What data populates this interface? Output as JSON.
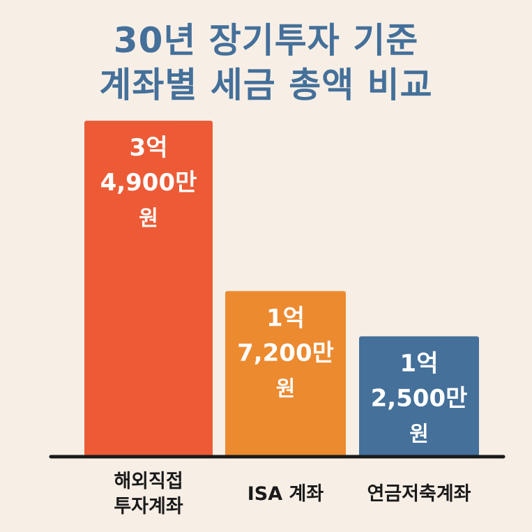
{
  "title": {
    "line1": "30년 장기투자 기준",
    "line2": "계좌별 세금 총액 비교"
  },
  "colors": {
    "background": "#f7efe6",
    "title": "#44709a",
    "axis": "#1a1a1a",
    "label_text": "#ffffff"
  },
  "chart_data": {
    "type": "bar",
    "title": "30년 장기투자 기준 계좌별 세금 총액 비교",
    "xlabel": "",
    "ylabel": "",
    "unit": "만원",
    "ylim": [
      0,
      36000
    ],
    "grid": false,
    "categories": [
      [
        "해외직접",
        "투자계좌"
      ],
      [
        "ISA 계좌"
      ],
      [
        "연금저축계좌"
      ]
    ],
    "values": [
      34900,
      17200,
      12500
    ],
    "bar_colors": [
      "#ec5b36",
      "#ec8a30",
      "#44709a"
    ],
    "data_labels": [
      [
        "3억",
        "4,900만",
        "원"
      ],
      [
        "1억",
        "7,200만",
        "원"
      ],
      [
        "1억",
        "2,500만",
        "원"
      ]
    ]
  }
}
